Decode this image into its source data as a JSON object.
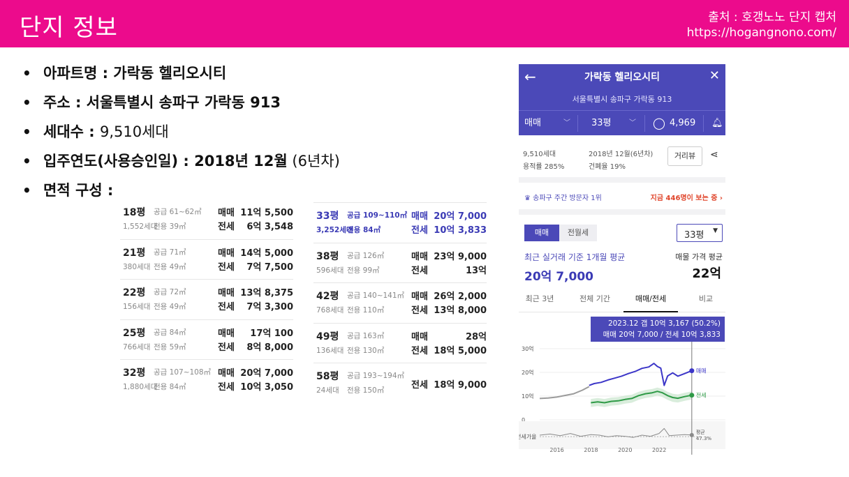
{
  "header": {
    "title": "단지 정보",
    "source_line1": "출처 : 호갱노노 단지 캡처",
    "source_line2": "https://hogangnono.com/"
  },
  "bullets": [
    {
      "label": "아파트명 : 가락동 헬리오시티",
      "extra": ""
    },
    {
      "label": "주소 : 서울특별시 송파구 가락동 913",
      "extra": ""
    },
    {
      "label": "세대수 : ",
      "extra": "9,510세대"
    },
    {
      "label": "입주연도(사용승인일) : 2018년 12월",
      "extra": " (6년차)"
    },
    {
      "label": "면적 구성 :",
      "extra": ""
    }
  ],
  "areas_left": [
    {
      "size": "18평",
      "supply": "공급 61~62㎡",
      "units": "1,552세대",
      "exclusive": "전용 39㎡",
      "type1": "매매",
      "price1": "11억 5,500",
      "type2": "전세",
      "price2": "6억 3,548"
    },
    {
      "size": "21평",
      "supply": "공급 71㎡",
      "units": "380세대",
      "exclusive": "전용 49㎡",
      "type1": "매매",
      "price1": "14억 5,000",
      "type2": "전세",
      "price2": "7억 7,500"
    },
    {
      "size": "22평",
      "supply": "공급 72㎡",
      "units": "156세대",
      "exclusive": "전용 49㎡",
      "type1": "매매",
      "price1": "13억 8,375",
      "type2": "전세",
      "price2": "7억 3,300"
    },
    {
      "size": "25평",
      "supply": "공급 84㎡",
      "units": "766세대",
      "exclusive": "전용 59㎡",
      "type1": "매매",
      "price1": "17억 100",
      "type2": "전세",
      "price2": "8억 8,000"
    },
    {
      "size": "32평",
      "supply": "공급 107~108㎡",
      "units": "1,880세대",
      "exclusive": "전용 84㎡",
      "type1": "매매",
      "price1": "20억 7,000",
      "type2": "전세",
      "price2": "10억 3,050"
    }
  ],
  "areas_right": [
    {
      "size": "33평",
      "supply": "공급 109~110㎡",
      "units": "3,252세대",
      "exclusive": "전용 84㎡",
      "type1": "매매",
      "price1": "20억 7,000",
      "type2": "전세",
      "price2": "10억 3,833"
    },
    {
      "size": "38평",
      "supply": "공급 126㎡",
      "units": "596세대",
      "exclusive": "전용 99㎡",
      "type1": "매매",
      "price1": "23억 9,000",
      "type2": "전세",
      "price2": "13억"
    },
    {
      "size": "42평",
      "supply": "공급 140~141㎡",
      "units": "768세대",
      "exclusive": "전용 110㎡",
      "type1": "매매",
      "price1": "26억 2,000",
      "type2": "전세",
      "price2": "13억 8,000"
    },
    {
      "size": "49평",
      "supply": "공급 163㎡",
      "units": "136세대",
      "exclusive": "전용 130㎡",
      "type1": "매매",
      "price1": "28억",
      "type2": "전세",
      "price2": "18억 5,000"
    },
    {
      "size": "58평",
      "supply": "공급 193~194㎡",
      "units": "24세대",
      "exclusive": "전용 150㎡",
      "type1": "전세",
      "price1": "18억 9,000",
      "type2": "",
      "price2": ""
    }
  ],
  "phone": {
    "title": "가락동 헬리오시티",
    "address": "서울특별시 송파구 가락동 913",
    "bar_trade": "매매",
    "bar_size": "33평",
    "bar_comments": "4,969",
    "info_units": "9,510세대",
    "info_far": "용적률 285%",
    "info_built": "2018년 12월(6년차)",
    "info_bcr": "건폐율 19%",
    "street_button": "거리뷰",
    "visit_left": "송파구 주간 방문자 1위",
    "visit_right": "지금 446명이 보는 중",
    "tab_trade": "매매",
    "tab_rent": "전월세",
    "size_select": "33평",
    "recent_label": "최근 실거래 기준 1개월 평균",
    "recent_value": "20억 7,000",
    "avg_label": "매물 가격 평균",
    "avg_value": "22억",
    "period_tabs": [
      "최근 3년",
      "전체 기간",
      "매매/전세",
      "비교"
    ],
    "tooltip_line1": "2023.12  갭 10억 3,167 (50.2%)",
    "tooltip_line2": "매매 20억 7,000 / 전세 10억 3,833"
  },
  "colors": {
    "header_bg": "#ec0b8c",
    "phone_accent": "#4b49b8",
    "trade_line": "#3c36c8",
    "rent_line": "#2e9a46",
    "pre_line": "#9b9b9b"
  },
  "chart_data": {
    "type": "line",
    "y_ticks": [
      "30억",
      "20억",
      "10억",
      "0"
    ],
    "x_ticks": [
      "2016",
      "2018",
      "2020",
      "2022"
    ],
    "ylim": [
      0,
      30
    ],
    "series_labels": {
      "trade": "매매",
      "rent": "전세",
      "ratio": "평균\n47.3%",
      "ratio_left": "전세가율"
    },
    "pre_trade": [
      [
        2015.0,
        9.0
      ],
      [
        2015.5,
        9.2
      ],
      [
        2016.0,
        9.6
      ],
      [
        2016.5,
        10.3
      ],
      [
        2017.0,
        11.0
      ],
      [
        2017.5,
        12.5
      ],
      [
        2017.9,
        14.0
      ]
    ],
    "trade": [
      [
        2017.9,
        14.5
      ],
      [
        2018.2,
        15.3
      ],
      [
        2018.6,
        15.8
      ],
      [
        2019.0,
        16.8
      ],
      [
        2019.4,
        17.6
      ],
      [
        2019.8,
        18.4
      ],
      [
        2020.2,
        19.5
      ],
      [
        2020.6,
        20.4
      ],
      [
        2021.0,
        21.7
      ],
      [
        2021.4,
        22.3
      ],
      [
        2021.7,
        23.8
      ],
      [
        2021.9,
        22.5
      ],
      [
        2022.1,
        21.8
      ],
      [
        2022.3,
        14.5
      ],
      [
        2022.5,
        18.5
      ],
      [
        2022.8,
        19.8
      ],
      [
        2023.1,
        18.4
      ],
      [
        2023.5,
        19.5
      ],
      [
        2023.92,
        20.7
      ]
    ],
    "rent": [
      [
        2018.0,
        7.2
      ],
      [
        2018.4,
        7.6
      ],
      [
        2018.8,
        7.2
      ],
      [
        2019.2,
        7.8
      ],
      [
        2019.6,
        8.0
      ],
      [
        2020.0,
        8.6
      ],
      [
        2020.4,
        9.0
      ],
      [
        2020.8,
        10.2
      ],
      [
        2021.2,
        11.0
      ],
      [
        2021.6,
        11.4
      ],
      [
        2021.9,
        12.0
      ],
      [
        2022.2,
        11.4
      ],
      [
        2022.5,
        10.2
      ],
      [
        2022.8,
        9.4
      ],
      [
        2023.1,
        9.1
      ],
      [
        2023.5,
        9.8
      ],
      [
        2023.92,
        10.38
      ]
    ],
    "ratio": [
      [
        2015.0,
        50
      ],
      [
        2015.6,
        52
      ],
      [
        2016.2,
        49
      ],
      [
        2016.8,
        53
      ],
      [
        2017.4,
        48
      ],
      [
        2018.0,
        51
      ],
      [
        2018.5,
        50
      ],
      [
        2019.0,
        47
      ],
      [
        2019.5,
        49
      ],
      [
        2020.0,
        48
      ],
      [
        2020.5,
        46
      ],
      [
        2021.0,
        50
      ],
      [
        2021.5,
        48
      ],
      [
        2022.0,
        53
      ],
      [
        2022.3,
        62
      ],
      [
        2022.6,
        49
      ],
      [
        2023.0,
        50
      ],
      [
        2023.5,
        51
      ],
      [
        2023.92,
        50.2
      ]
    ],
    "ratio_avg": 47.3
  }
}
